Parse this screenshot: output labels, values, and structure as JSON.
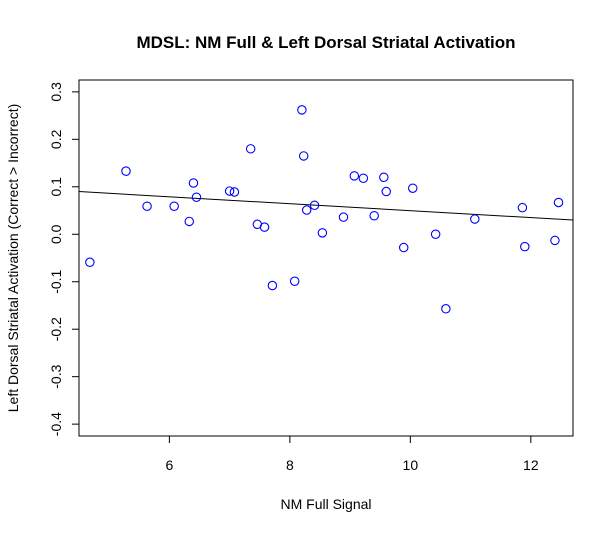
{
  "chart_data": {
    "type": "scatter",
    "title": "MDSL: NM Full & Left Dorsal Striatal Activation",
    "xlabel": "NM Full Signal",
    "ylabel": "Left Dorsal Striatal Activation (Correct > Incorrect)",
    "xlim": [
      4.5,
      12.7
    ],
    "ylim": [
      -0.425,
      0.325
    ],
    "x_ticks": [
      6,
      8,
      10,
      12
    ],
    "x_tick_labels": [
      "6",
      "8",
      "10",
      "12"
    ],
    "y_ticks": [
      -0.4,
      -0.3,
      -0.2,
      -0.1,
      0.0,
      0.1,
      0.2,
      0.3
    ],
    "y_tick_labels": [
      "-0.4",
      "-0.3",
      "-0.2",
      "-0.1",
      "0.0",
      "0.1",
      "0.2",
      "0.3"
    ],
    "grid": false,
    "marker_color": "#0000ff",
    "line_color": "#000000",
    "points": [
      {
        "x": 4.68,
        "y": -0.059
      },
      {
        "x": 5.28,
        "y": 0.133
      },
      {
        "x": 5.63,
        "y": 0.059
      },
      {
        "x": 6.08,
        "y": 0.059
      },
      {
        "x": 6.33,
        "y": 0.027
      },
      {
        "x": 6.4,
        "y": 0.108
      },
      {
        "x": 6.45,
        "y": 0.078
      },
      {
        "x": 7.0,
        "y": 0.091
      },
      {
        "x": 7.08,
        "y": 0.089
      },
      {
        "x": 7.35,
        "y": 0.18
      },
      {
        "x": 7.46,
        "y": 0.021
      },
      {
        "x": 7.58,
        "y": 0.015
      },
      {
        "x": 7.71,
        "y": -0.108
      },
      {
        "x": 8.08,
        "y": -0.099
      },
      {
        "x": 8.2,
        "y": 0.262
      },
      {
        "x": 8.23,
        "y": 0.165
      },
      {
        "x": 8.28,
        "y": 0.051
      },
      {
        "x": 8.41,
        "y": 0.061
      },
      {
        "x": 8.54,
        "y": 0.003
      },
      {
        "x": 8.89,
        "y": 0.036
      },
      {
        "x": 9.07,
        "y": 0.123
      },
      {
        "x": 9.22,
        "y": 0.118
      },
      {
        "x": 9.4,
        "y": 0.039
      },
      {
        "x": 9.56,
        "y": 0.12
      },
      {
        "x": 9.6,
        "y": 0.09
      },
      {
        "x": 9.89,
        "y": -0.028
      },
      {
        "x": 10.04,
        "y": 0.097
      },
      {
        "x": 10.42,
        "y": 0.0
      },
      {
        "x": 10.59,
        "y": -0.157
      },
      {
        "x": 11.07,
        "y": 0.032
      },
      {
        "x": 11.86,
        "y": 0.056
      },
      {
        "x": 11.9,
        "y": -0.026
      },
      {
        "x": 12.4,
        "y": -0.013
      },
      {
        "x": 12.46,
        "y": 0.067
      }
    ],
    "regression_line": {
      "x": [
        4.5,
        12.7
      ],
      "y": [
        0.09,
        0.03
      ]
    }
  }
}
